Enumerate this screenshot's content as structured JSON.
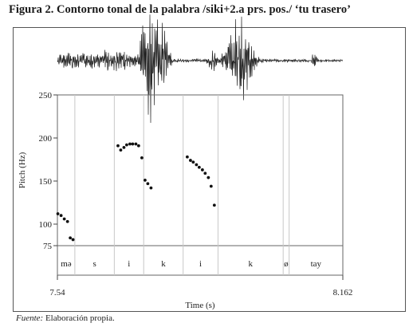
{
  "figure": {
    "title": "Figura 2. Contorno tonal de la palabra /siki+2.a prs. pos./ ‘tu trasero’",
    "source_label": "Fuente:",
    "source_text": " Elaboración propia."
  },
  "chart_data": {
    "type": "scatter",
    "xlabel": "Time (s)",
    "ylabel": "Pitch (Hz)",
    "xlim": [
      7.54,
      8.162
    ],
    "ylim": [
      75,
      250
    ],
    "x_tick_labels": [
      "7.54",
      "8.162"
    ],
    "y_ticks": [
      75,
      100,
      150,
      200,
      250
    ],
    "series": [
      {
        "points": [
          {
            "x": 7.541,
            "y": 112
          },
          {
            "x": 7.548,
            "y": 110
          },
          {
            "x": 7.555,
            "y": 106
          },
          {
            "x": 7.562,
            "y": 103
          },
          {
            "x": 7.568,
            "y": 84
          },
          {
            "x": 7.574,
            "y": 82
          },
          {
            "x": 7.672,
            "y": 191
          },
          {
            "x": 7.678,
            "y": 186
          },
          {
            "x": 7.685,
            "y": 189
          },
          {
            "x": 7.691,
            "y": 192
          },
          {
            "x": 7.698,
            "y": 193
          },
          {
            "x": 7.704,
            "y": 193
          },
          {
            "x": 7.711,
            "y": 193
          },
          {
            "x": 7.717,
            "y": 191
          },
          {
            "x": 7.724,
            "y": 177
          },
          {
            "x": 7.731,
            "y": 151
          },
          {
            "x": 7.737,
            "y": 147
          },
          {
            "x": 7.744,
            "y": 142
          },
          {
            "x": 7.823,
            "y": 178
          },
          {
            "x": 7.83,
            "y": 174
          },
          {
            "x": 7.836,
            "y": 172
          },
          {
            "x": 7.843,
            "y": 169
          },
          {
            "x": 7.849,
            "y": 166
          },
          {
            "x": 7.856,
            "y": 163
          },
          {
            "x": 7.862,
            "y": 159
          },
          {
            "x": 7.869,
            "y": 154
          },
          {
            "x": 7.875,
            "y": 144
          },
          {
            "x": 7.882,
            "y": 122
          }
        ]
      }
    ],
    "segments": [
      {
        "label": "mə",
        "start": 7.54,
        "end": 7.578
      },
      {
        "label": "s",
        "start": 7.578,
        "end": 7.664
      },
      {
        "label": "i",
        "start": 7.664,
        "end": 7.728
      },
      {
        "label": "k",
        "start": 7.728,
        "end": 7.814
      },
      {
        "label": "i",
        "start": 7.814,
        "end": 7.89
      },
      {
        "label": "k",
        "start": 7.89,
        "end": 8.032
      },
      {
        "label": "ø",
        "start": 8.032,
        "end": 8.045
      },
      {
        "label": "tay",
        "start": 8.045,
        "end": 8.162
      }
    ]
  }
}
